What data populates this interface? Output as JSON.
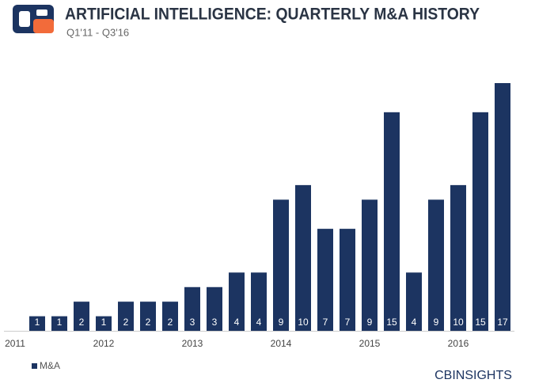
{
  "chart_data": {
    "type": "bar",
    "title": "ARTIFICIAL INTELLIGENCE: QUARTERLY M&A HISTORY",
    "subtitle": "Q1'11 - Q3'16",
    "categories": [
      "2011",
      null,
      null,
      null,
      "2012",
      null,
      null,
      null,
      "2013",
      null,
      null,
      null,
      "2014",
      null,
      null,
      null,
      "2015",
      null,
      null,
      null,
      "2016",
      null,
      null
    ],
    "series": [
      {
        "name": "M&A",
        "color": "#1c3461",
        "values": [
          0,
          1,
          1,
          2,
          1,
          2,
          2,
          2,
          3,
          3,
          4,
          4,
          9,
          10,
          7,
          7,
          9,
          15,
          4,
          9,
          10,
          15,
          17
        ]
      }
    ],
    "ylim": [
      0,
      17
    ],
    "source": "CBINSIGHTS"
  }
}
